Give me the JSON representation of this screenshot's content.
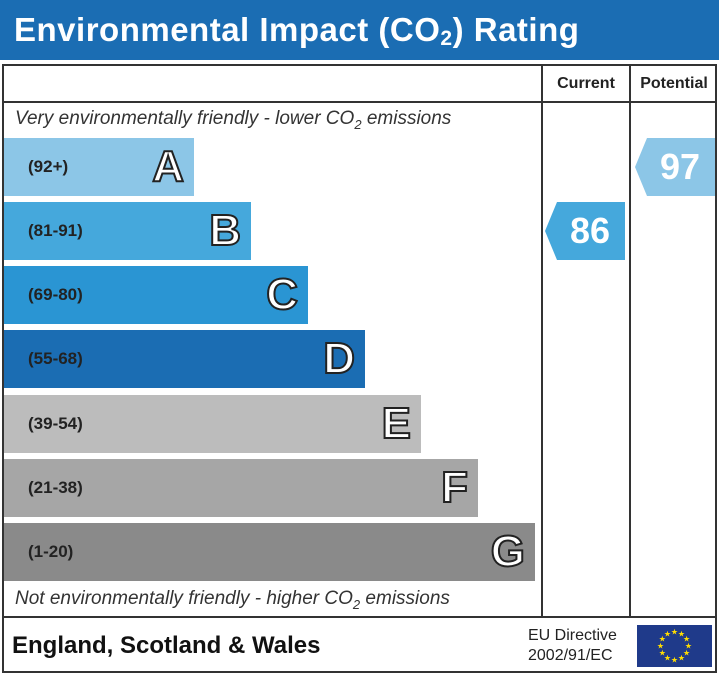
{
  "title": {
    "prefix": "Environmental Impact (CO",
    "sub": "2",
    "suffix": ") Rating"
  },
  "columns": {
    "current": "Current",
    "potential": "Potential"
  },
  "top_note": {
    "prefix": "Very environmentally friendly - lower CO",
    "sub": "2",
    "suffix": " emissions"
  },
  "bottom_note": {
    "prefix": "Not environmentally friendly - higher CO",
    "sub": "2",
    "suffix": " emissions"
  },
  "chart_data": {
    "type": "bar",
    "categories": [
      "A",
      "B",
      "C",
      "D",
      "E",
      "F",
      "G"
    ],
    "bands": [
      {
        "letter": "A",
        "range": "(92+)",
        "color": "#8cc6e7"
      },
      {
        "letter": "B",
        "range": "(81-91)",
        "color": "#45a8dc"
      },
      {
        "letter": "C",
        "range": "(69-80)",
        "color": "#2a95d3"
      },
      {
        "letter": "D",
        "range": "(55-68)",
        "color": "#1b6db3"
      },
      {
        "letter": "E",
        "range": "(39-54)",
        "color": "#bcbcbc"
      },
      {
        "letter": "F",
        "range": "(21-38)",
        "color": "#a6a6a6"
      },
      {
        "letter": "G",
        "range": "(1-20)",
        "color": "#8a8a8a"
      }
    ],
    "current": {
      "value": 86,
      "band": "B",
      "color": "#45a8dc"
    },
    "potential": {
      "value": 97,
      "band": "A",
      "color": "#8cc6e7"
    }
  },
  "footer": {
    "region": "England, Scotland & Wales",
    "directive_line1": "EU Directive",
    "directive_line2": "2002/91/EC",
    "flag_color": "#1f3a8a",
    "star_color": "#ffdd00"
  }
}
